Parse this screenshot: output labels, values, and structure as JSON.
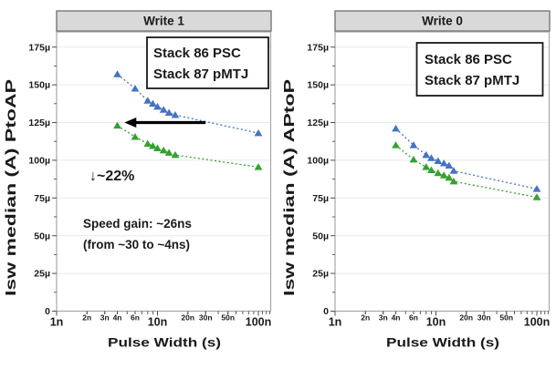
{
  "figure": {
    "background": "#FFFFFF",
    "description_note": "Dual scatter plot figure comparing switching current vs pulse width"
  },
  "styles": {
    "title_bar_bg": "#D9D9D9",
    "title_bar_border": "#7F7F7F",
    "plot_frame": "#A8A8A8",
    "gridline": "#EAEAEA",
    "tick_color": "#4D4D4D",
    "text_color": "#1A1A1A",
    "annotation_color": "#000000",
    "psc_green": "#35A12F",
    "pmtj_blue": "#4472C4",
    "legend_blue": "#2E75B6"
  },
  "chart_data": [
    {
      "type": "scatter",
      "title": "Write 1",
      "xlabel": "Pulse Width (s)",
      "ylabel": "Isw median (A) PtoAP",
      "x_scale": "log",
      "x_unit": "ns",
      "y_unit": "µA",
      "xlim_ns": [
        1,
        131
      ],
      "ylim_uA": [
        0,
        185
      ],
      "grid": "horizontal-major",
      "y_major_ticks_uA": [
        0,
        25,
        50,
        75,
        100,
        125,
        150,
        175
      ],
      "y_tick_labels": [
        "0",
        "25µ",
        "50µ",
        "75µ",
        "100µ",
        "125µ",
        "150µ",
        "175µ"
      ],
      "x_ticks": [
        {
          "ns": 1,
          "label": "1n",
          "major": true
        },
        {
          "ns": 2,
          "label": "2n",
          "major": false
        },
        {
          "ns": 3,
          "label": "3n",
          "major": false
        },
        {
          "ns": 4,
          "label": "4n",
          "major": false
        },
        {
          "ns": 6,
          "label": "6n",
          "major": false
        },
        {
          "ns": 10,
          "label": "10n",
          "major": true
        },
        {
          "ns": 20,
          "label": "20n",
          "major": false
        },
        {
          "ns": 30,
          "label": "30n",
          "major": false
        },
        {
          "ns": 50,
          "label": "50n",
          "major": false
        },
        {
          "ns": 100,
          "label": "100n",
          "major": true
        }
      ],
      "x_minor_ticks_ns": [
        2,
        3,
        4,
        5,
        6,
        7,
        8,
        9,
        20,
        30,
        40,
        50,
        60,
        70,
        80,
        90,
        110,
        120,
        130
      ],
      "legend": {
        "position": "top-right",
        "text_colors": [
          "#35A12F",
          "#2E75B6"
        ]
      },
      "series": [
        {
          "name": "Stack 86 PSC",
          "color": "#35A12F",
          "marker": "triangle",
          "line": "dotted",
          "x_ns": [
            4,
            6,
            8,
            9,
            10,
            11.5,
            13,
            15,
            100
          ],
          "y_uA": [
            123,
            115.5,
            111,
            109.5,
            108,
            106.5,
            105,
            103.5,
            95.5
          ]
        },
        {
          "name": "Stack 87 pMTJ",
          "color": "#4472C4",
          "marker": "triangle",
          "line": "dotted",
          "x_ns": [
            4,
            6,
            8,
            9,
            10,
            11.5,
            13,
            15,
            100
          ],
          "y_uA": [
            157,
            147.5,
            139.5,
            137.5,
            135.5,
            133.5,
            131.5,
            130,
            118
          ]
        }
      ],
      "annotations": {
        "arrow": {
          "from_ns": 30,
          "to_ns": 4.7,
          "at_uA": 125,
          "direction": "left",
          "color": "#000000"
        },
        "drop_label": "↓~22%",
        "speed_line1": "Speed gain: ~26ns",
        "speed_line2": "(from ~30 to ~4ns)"
      }
    },
    {
      "type": "scatter",
      "title": "Write 0",
      "xlabel": "Pulse Width (s)",
      "ylabel": "Isw median (A) APtoP",
      "x_scale": "log",
      "x_unit": "ns",
      "y_unit": "µA",
      "xlim_ns": [
        1,
        131
      ],
      "ylim_uA": [
        0,
        185
      ],
      "grid": "horizontal-major",
      "y_major_ticks_uA": [
        0,
        25,
        50,
        75,
        100,
        125,
        150,
        175
      ],
      "y_tick_labels": [
        "0",
        "25µ",
        "50µ",
        "75µ",
        "100µ",
        "125µ",
        "150µ",
        "175µ"
      ],
      "x_ticks": [
        {
          "ns": 1,
          "label": "1n",
          "major": true
        },
        {
          "ns": 2,
          "label": "2n",
          "major": false
        },
        {
          "ns": 3,
          "label": "3n",
          "major": false
        },
        {
          "ns": 4,
          "label": "4n",
          "major": false
        },
        {
          "ns": 6,
          "label": "6n",
          "major": false
        },
        {
          "ns": 10,
          "label": "10n",
          "major": true
        },
        {
          "ns": 20,
          "label": "20n",
          "major": false
        },
        {
          "ns": 30,
          "label": "30n",
          "major": false
        },
        {
          "ns": 50,
          "label": "50n",
          "major": false
        },
        {
          "ns": 100,
          "label": "100n",
          "major": true
        }
      ],
      "x_minor_ticks_ns": [
        2,
        3,
        4,
        5,
        6,
        7,
        8,
        9,
        20,
        30,
        40,
        50,
        60,
        70,
        80,
        90,
        110,
        120,
        130
      ],
      "legend": {
        "position": "top-right",
        "text_colors": [
          "#35A12F",
          "#2E75B6"
        ]
      },
      "series": [
        {
          "name": "Stack 86 PSC",
          "color": "#35A12F",
          "marker": "triangle",
          "line": "dotted",
          "x_ns": [
            4,
            6,
            8,
            9,
            10.5,
            12,
            13.5,
            15,
            100
          ],
          "y_uA": [
            110,
            100.5,
            95.5,
            93.5,
            91.5,
            90,
            88.5,
            86,
            75.5
          ]
        },
        {
          "name": "Stack 87 pMTJ",
          "color": "#4472C4",
          "marker": "triangle",
          "line": "dotted",
          "x_ns": [
            4,
            6,
            8,
            9,
            10.5,
            12,
            13.5,
            15,
            100
          ],
          "y_uA": [
            121,
            110,
            103.5,
            101.5,
            99.5,
            98,
            96.5,
            93,
            81
          ]
        }
      ],
      "annotations": null
    }
  ]
}
